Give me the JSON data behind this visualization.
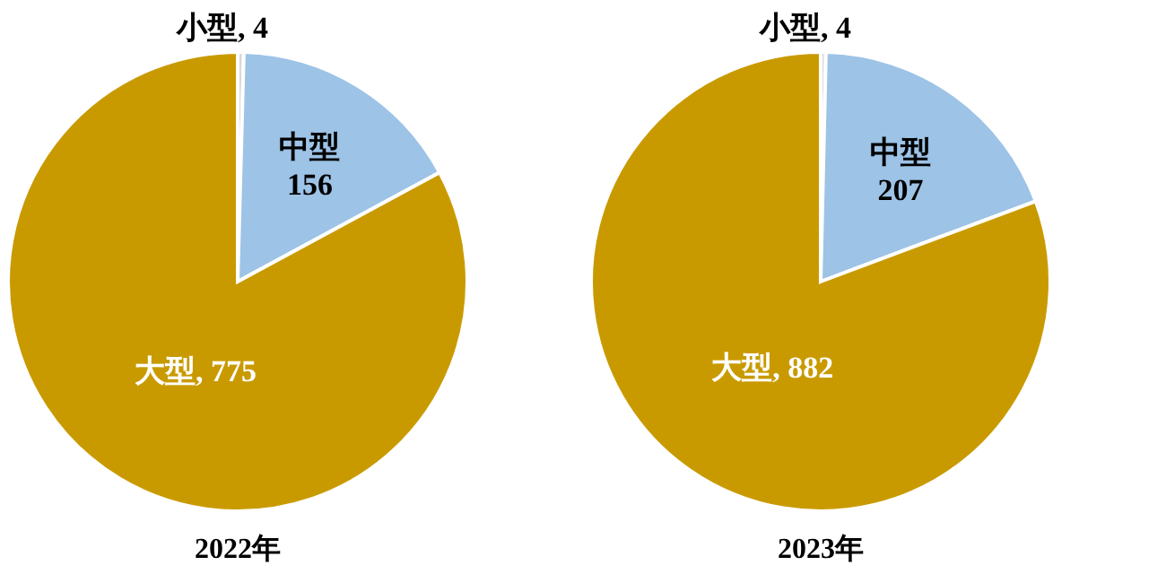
{
  "chart_data": [
    {
      "type": "pie",
      "title": "2022年",
      "categories": [
        "小型",
        "中型",
        "大型"
      ],
      "values": [
        4,
        156,
        775
      ],
      "colors": [
        "#d9d9d9",
        "#9dc3e6",
        "#c99a00"
      ],
      "value_labels": [
        ", 4",
        "156",
        ", 775"
      ]
    },
    {
      "type": "pie",
      "title": "2023年",
      "categories": [
        "小型",
        "中型",
        "大型"
      ],
      "values": [
        4,
        207,
        882
      ],
      "colors": [
        "#d9d9d9",
        "#9dc3e6",
        "#c99a00"
      ],
      "value_labels": [
        ", 4",
        "207",
        ", 882"
      ]
    }
  ]
}
